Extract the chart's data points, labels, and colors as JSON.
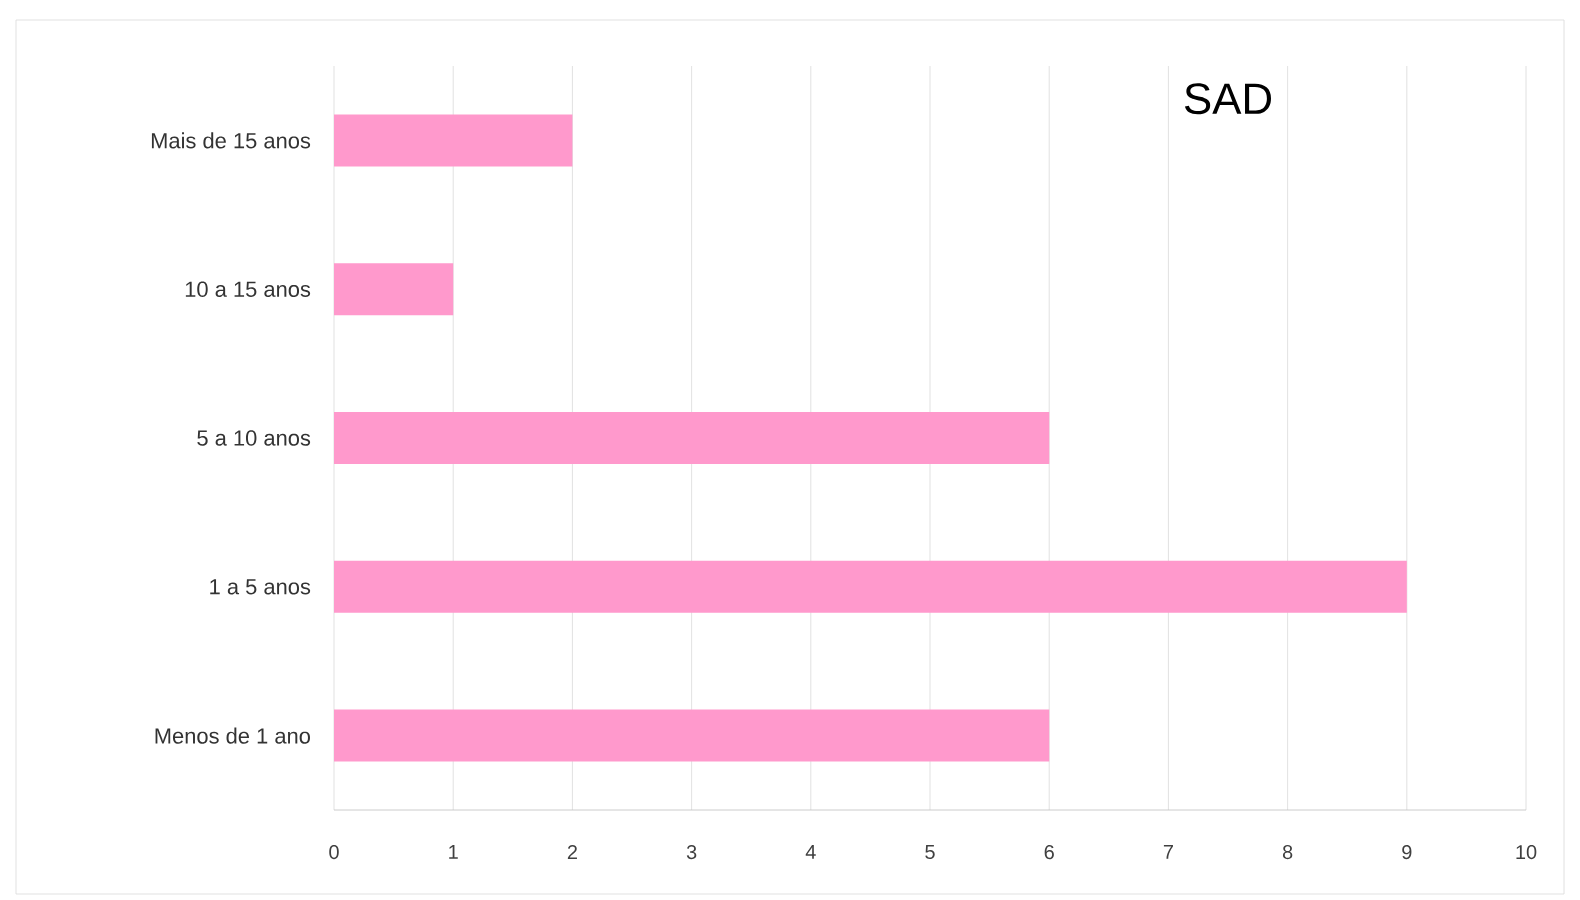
{
  "chart_data": {
    "type": "bar",
    "orientation": "horizontal",
    "title": "SAD",
    "categories": [
      "Mais de 15 anos",
      "10 a 15 anos",
      "5 a 10 anos",
      "1 a 5 anos",
      "Menos de 1 ano"
    ],
    "values": [
      2,
      1,
      6,
      9,
      6
    ],
    "color": "#ff99cc",
    "xlim": [
      0,
      10
    ],
    "xticks": [
      0,
      1,
      2,
      3,
      4,
      5,
      6,
      7,
      8,
      9,
      10
    ],
    "grid": "x"
  }
}
